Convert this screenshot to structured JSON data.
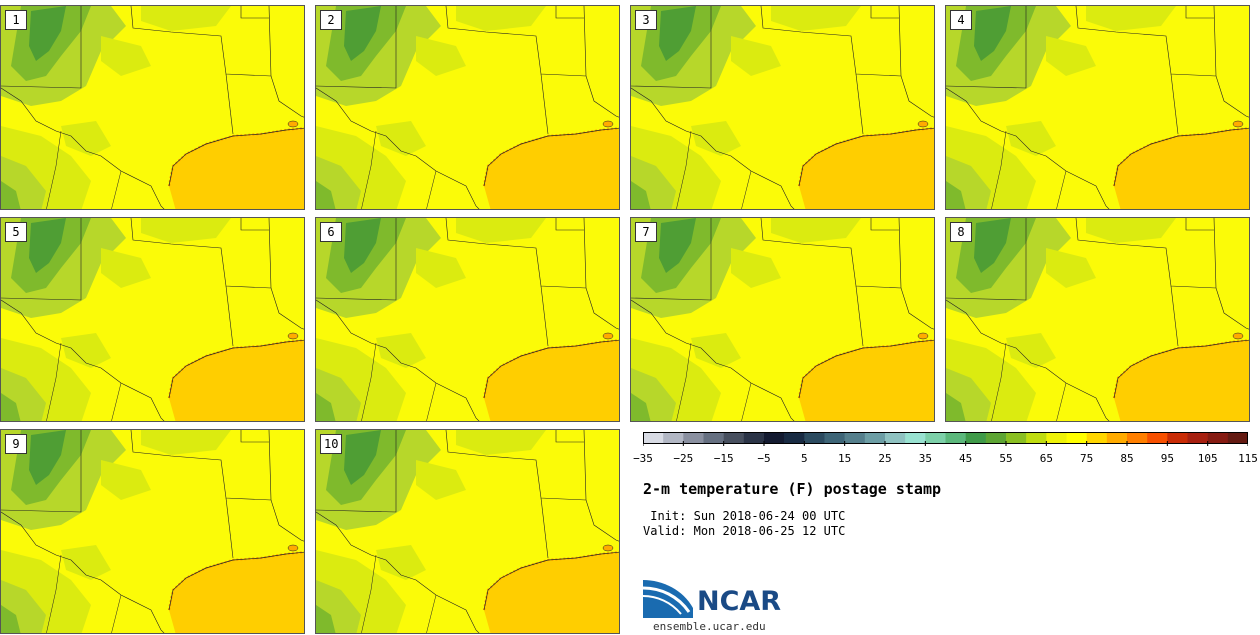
{
  "product": {
    "title": "2-m temperature (F) postage stamp",
    "init_label": " Init:",
    "init_value": "Sun 2018-06-24 00 UTC",
    "valid_label": "Valid:",
    "valid_value": "Mon 2018-06-25 12 UTC"
  },
  "panels": [
    {
      "label": "1"
    },
    {
      "label": "2"
    },
    {
      "label": "3"
    },
    {
      "label": "4"
    },
    {
      "label": "5"
    },
    {
      "label": "6"
    },
    {
      "label": "7"
    },
    {
      "label": "8"
    },
    {
      "label": "9"
    },
    {
      "label": "10"
    }
  ],
  "colorbar": {
    "tick_labels": [
      "−35",
      "−25",
      "−15",
      "−5",
      "5",
      "15",
      "25",
      "35",
      "45",
      "55",
      "65",
      "75",
      "85",
      "95",
      "105",
      "115"
    ],
    "colors": [
      "#d8dbe4",
      "#b2b7c4",
      "#8a90a0",
      "#667081",
      "#48505f",
      "#2b3447",
      "#141b31",
      "#192b43",
      "#2c4b60",
      "#3e6577",
      "#557f8c",
      "#6d9ea5",
      "#8fc2c1",
      "#99e2d1",
      "#7dd0a9",
      "#5cb87c",
      "#3f9a49",
      "#5da534",
      "#8abf22",
      "#bfdc10",
      "#eef208",
      "#ffff00",
      "#ffd600",
      "#ffab00",
      "#ff7f00",
      "#f75000",
      "#c92c06",
      "#a72010",
      "#861b12",
      "#641a12"
    ]
  },
  "map_colors": {
    "gulf": "#ffce00",
    "land_yellow": "#fbfb08",
    "light_green": "#dbeb10",
    "mid_green": "#b7d72a",
    "dark_green": "#7fba2c",
    "deep_green": "#4f9e34"
  },
  "logo": {
    "text": "NCAR",
    "site": "ensemble.ucar.edu"
  }
}
